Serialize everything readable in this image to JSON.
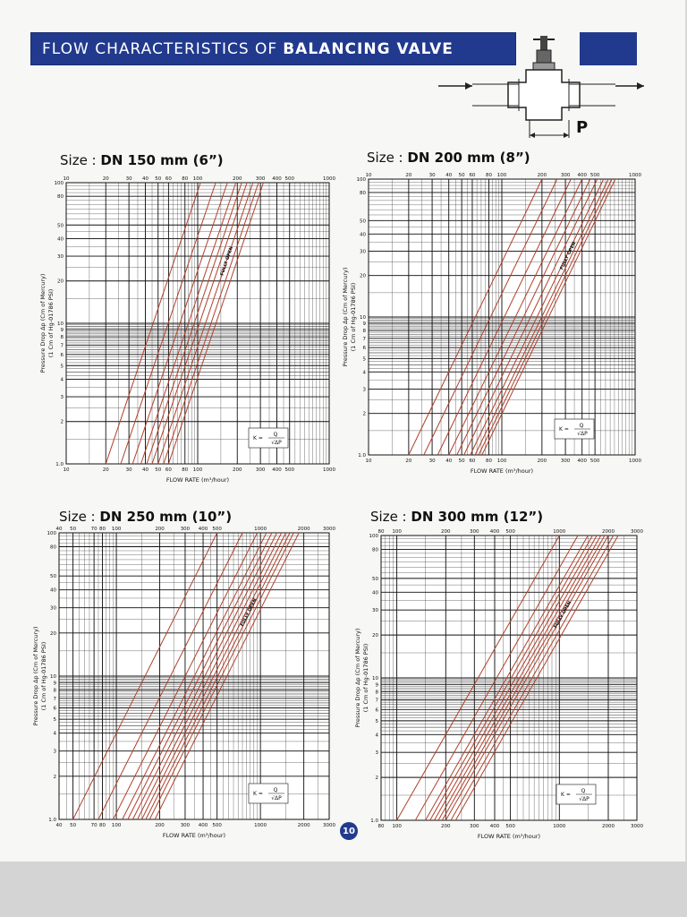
{
  "header": {
    "title_prefix": "FLOW CHARACTERISTICS OF",
    "title_bold": "BALANCING VALVE",
    "accent_color": "#213a8e",
    "diagram_label": "P"
  },
  "page_number": "10",
  "chart_data": [
    {
      "type": "line",
      "size_label": "Size :",
      "size_value": "DN 150 mm (6”)",
      "xscale": "log",
      "yscale": "log",
      "xlim": [
        10,
        1000
      ],
      "ylim": [
        1,
        100
      ],
      "xticks": [
        10,
        20,
        30,
        40,
        50,
        60,
        80,
        100,
        200,
        300,
        400,
        500,
        1000
      ],
      "yticks": [
        1,
        2,
        3,
        4,
        5,
        6,
        7,
        8,
        9,
        10,
        20,
        30,
        40,
        50,
        80,
        100
      ],
      "xlabel": "FLOW RATE (m³/hour)",
      "ylabel_line1": "Pressure Drop Δp (Cm of Mercury)",
      "ylabel_line2": "(1 Cm of Hg-01786 PSI)",
      "formula_left": "K =",
      "formula_num": "Q",
      "formula_den": "√ΔP",
      "annotation": "FULLY OPEN",
      "grid": true,
      "line_color": "#b0402a",
      "series": [
        {
          "x": [
            20,
            105
          ]
        },
        {
          "x": [
            26,
            137
          ]
        },
        {
          "x": [
            32,
            168
          ]
        },
        {
          "x": [
            37,
            195
          ]
        },
        {
          "x": [
            41,
            216
          ]
        },
        {
          "x": [
            45,
            237
          ]
        },
        {
          "x": [
            50,
            263
          ]
        },
        {
          "x": [
            55,
            290
          ]
        },
        {
          "x": [
            60,
            316
          ]
        }
      ]
    },
    {
      "type": "line",
      "size_label": "Size :",
      "size_value": "DN 200 mm (8”)",
      "xscale": "log",
      "yscale": "log",
      "xlim": [
        10,
        1000
      ],
      "ylim": [
        1,
        100
      ],
      "xticks": [
        10,
        20,
        30,
        40,
        50,
        60,
        80,
        100,
        200,
        300,
        400,
        500,
        1000
      ],
      "yticks": [
        1,
        2,
        3,
        4,
        5,
        6,
        7,
        8,
        9,
        10,
        20,
        30,
        40,
        50,
        80,
        100
      ],
      "xlabel": "FLOW RATE (m³/hour)",
      "ylabel_line1": "Pressure Drop Δp (Cm of Mercury)",
      "ylabel_line2": "(1 Cm of Hg-01786 PSI)",
      "formula_left": "K =",
      "formula_num": "Q",
      "formula_den": "√ΔP",
      "annotation": "FULLY OPEN",
      "grid": true,
      "line_color": "#b0402a",
      "series": [
        {
          "x": [
            20,
            200
          ]
        },
        {
          "x": [
            26,
            260
          ]
        },
        {
          "x": [
            33,
            330
          ]
        },
        {
          "x": [
            40,
            400
          ]
        },
        {
          "x": [
            46,
            460
          ]
        },
        {
          "x": [
            52,
            520
          ]
        },
        {
          "x": [
            58,
            580
          ]
        },
        {
          "x": [
            63,
            630
          ]
        },
        {
          "x": [
            67,
            670
          ]
        },
        {
          "x": [
            71,
            710
          ]
        }
      ]
    },
    {
      "type": "line",
      "size_label": "Size :",
      "size_value": "DN 250 mm (10”)",
      "xscale": "log",
      "yscale": "log",
      "xlim": [
        40,
        3000
      ],
      "ylim": [
        1,
        100
      ],
      "xticks": [
        40,
        50,
        70,
        80,
        100,
        200,
        300,
        400,
        500,
        1000,
        2000,
        3000
      ],
      "yticks": [
        1,
        2,
        3,
        4,
        5,
        6,
        7,
        8,
        9,
        10,
        20,
        30,
        40,
        50,
        80,
        100
      ],
      "xlabel": "FLOW RATE (m³/hour)",
      "ylabel_line1": "Pressure Drop Δp (Cm of Mercury)",
      "ylabel_line2": "(1 Cm of Hg-01786 PSI)",
      "formula_left": "K =",
      "formula_num": "Q",
      "formula_den": "√ΔP",
      "annotation": "FULLY OPEN",
      "grid": true,
      "line_color": "#b0402a",
      "series": [
        {
          "x": [
            50,
            500
          ]
        },
        {
          "x": [
            75,
            750
          ]
        },
        {
          "x": [
            95,
            950
          ]
        },
        {
          "x": [
            110,
            1100
          ]
        },
        {
          "x": [
            120,
            1200
          ]
        },
        {
          "x": [
            130,
            1300
          ]
        },
        {
          "x": [
            140,
            1400
          ]
        },
        {
          "x": [
            150,
            1500
          ]
        },
        {
          "x": [
            160,
            1600
          ]
        },
        {
          "x": [
            170,
            1700
          ]
        },
        {
          "x": [
            185,
            1850
          ]
        }
      ]
    },
    {
      "type": "line",
      "size_label": "Size :",
      "size_value": "DN 300 mm (12”)",
      "xscale": "log",
      "yscale": "log",
      "xlim": [
        80,
        3000
      ],
      "ylim": [
        1,
        100
      ],
      "xticks": [
        80,
        100,
        200,
        300,
        400,
        500,
        1000,
        2000,
        3000
      ],
      "yticks": [
        1,
        2,
        3,
        4,
        5,
        6,
        7,
        8,
        9,
        10,
        20,
        30,
        40,
        50,
        80,
        100
      ],
      "xlabel": "FLOW RATE (m³/hour)",
      "ylabel_line1": "Pressure Drop Δp (Cm of Mercury)",
      "ylabel_line2": "(1 Cm of Hg-01786 PSI)",
      "formula_left": "K =",
      "formula_num": "Q",
      "formula_den": "√ΔP",
      "annotation": "FULLY OPEN",
      "grid": true,
      "line_color": "#b0402a",
      "series": [
        {
          "x": [
            100,
            1000
          ]
        },
        {
          "x": [
            130,
            1300
          ]
        },
        {
          "x": [
            150,
            1500
          ]
        },
        {
          "x": [
            160,
            1600
          ]
        },
        {
          "x": [
            170,
            1700
          ]
        },
        {
          "x": [
            180,
            1800
          ]
        },
        {
          "x": [
            190,
            1900
          ]
        },
        {
          "x": [
            200,
            2000
          ]
        },
        {
          "x": [
            215,
            2150
          ]
        },
        {
          "x": [
            230,
            2300
          ]
        }
      ]
    }
  ]
}
